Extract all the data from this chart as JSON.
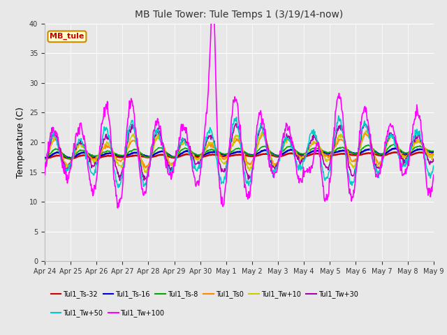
{
  "title": "MB Tule Tower: Tule Temps 1 (3/19/14-now)",
  "ylabel": "Temperature (C)",
  "ylim": [
    0,
    40
  ],
  "yticks": [
    0,
    5,
    10,
    15,
    20,
    25,
    30,
    35,
    40
  ],
  "bg_color": "#e8e8e8",
  "series": [
    {
      "label": "Tul1_Ts-32",
      "color": "#cc0000",
      "lw": 1.8,
      "base": 17.5,
      "trend": 0.04,
      "amp": 0.2,
      "phase": 0.0
    },
    {
      "label": "Tul1_Ts-16",
      "color": "#0000cc",
      "lw": 1.8,
      "base": 17.8,
      "trend": 0.05,
      "amp": 0.35,
      "phase": 0.0
    },
    {
      "label": "Tul1_Ts-8",
      "color": "#00aa00",
      "lw": 1.2,
      "base": 18.0,
      "trend": 0.06,
      "amp": 0.6,
      "phase": 0.05
    },
    {
      "label": "Tul1_Ts0",
      "color": "#ff8800",
      "lw": 1.2,
      "base": 18.1,
      "trend": 0.065,
      "amp": 1.8,
      "phase": 0.1
    },
    {
      "label": "Tul1_Tw+10",
      "color": "#cccc00",
      "lw": 1.2,
      "base": 18.0,
      "trend": 0.065,
      "amp": 2.2,
      "phase": 0.1
    },
    {
      "label": "Tul1_Tw+30",
      "color": "#aa00aa",
      "lw": 1.2,
      "base": 18.0,
      "trend": 0.07,
      "amp": 3.2,
      "phase": 0.12
    },
    {
      "label": "Tul1_Tw+50",
      "color": "#00cccc",
      "lw": 1.2,
      "base": 17.8,
      "trend": 0.055,
      "amp": 4.0,
      "phase": 0.15
    },
    {
      "label": "Tul1_Tw+100",
      "color": "#ff00ff",
      "lw": 1.2,
      "base": 18.0,
      "trend": 0.075,
      "amp": 6.5,
      "phase": 0.15
    }
  ],
  "xtick_labels": [
    "Apr 24",
    "Apr 25",
    "Apr 26",
    "Apr 27",
    "Apr 28",
    "Apr 29",
    "Apr 30",
    "May 1",
    "May 2",
    "May 3",
    "May 4",
    "May 5",
    "May 6",
    "May 7",
    "May 8",
    "May 9"
  ],
  "annotation_box": {
    "text": "MB_tule"
  },
  "legend_row1": [
    "Tul1_Ts-32",
    "Tul1_Ts-16",
    "Tul1_Ts-8",
    "Tul1_Ts0",
    "Tul1_Tw+10",
    "Tul1_Tw+30"
  ],
  "legend_row2": [
    "Tul1_Tw+50",
    "Tul1_Tw+100"
  ]
}
